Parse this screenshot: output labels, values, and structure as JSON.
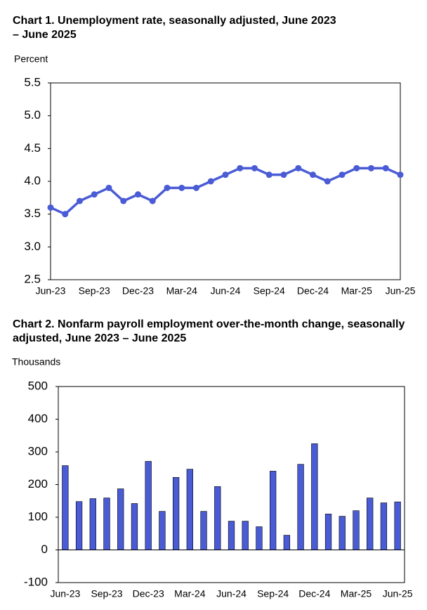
{
  "chart_data": [
    {
      "type": "line",
      "title": "Chart 1. Unemployment rate, seasonally adjusted, June 2023 – June 2025",
      "y_label": "Percent",
      "categories": [
        "Jun-23",
        null,
        null,
        "Sep-23",
        null,
        null,
        "Dec-23",
        null,
        null,
        "Mar-24",
        null,
        null,
        "Jun-24",
        null,
        null,
        "Sep-24",
        null,
        null,
        "Dec-24",
        null,
        null,
        "Mar-25",
        null,
        null,
        "Jun-25"
      ],
      "values": [
        3.6,
        3.5,
        3.7,
        3.8,
        3.9,
        3.7,
        3.8,
        3.7,
        3.9,
        3.9,
        3.9,
        4.0,
        4.1,
        4.2,
        4.2,
        4.1,
        4.1,
        4.2,
        4.1,
        4.0,
        4.1,
        4.2,
        4.2,
        4.2,
        4.1
      ],
      "color": "#4a5bd6",
      "ylim": [
        2.5,
        5.5
      ],
      "yticks": [
        2.5,
        {
          "value": 3,
          "label": "3.0"
        },
        3.5,
        {
          "value": 4,
          "label": "4.0"
        },
        4.5,
        {
          "value": 5,
          "label": "5.0"
        },
        5.5
      ],
      "grid": false
    },
    {
      "type": "bar",
      "title": "Chart 2. Nonfarm payroll employment over-the-month change, seasonally adjusted, June 2023 – June 2025",
      "y_label": "Thousands",
      "categories": [
        "Jun-23",
        null,
        null,
        "Sep-23",
        null,
        null,
        "Dec-23",
        null,
        null,
        "Mar-24",
        null,
        null,
        "Jun-24",
        null,
        null,
        "Sep-24",
        null,
        null,
        "Dec-24",
        null,
        null,
        "Mar-25",
        null,
        null,
        "Jun-25"
      ],
      "values": [
        258,
        148,
        157,
        159,
        187,
        142,
        271,
        118,
        222,
        247,
        118,
        194,
        88,
        88,
        71,
        241,
        45,
        262,
        325,
        110,
        103,
        120,
        159,
        144,
        147
      ],
      "color": "#4a5bd6",
      "ylim": [
        -100,
        500
      ],
      "yticks": [
        -100,
        0,
        100,
        200,
        300,
        400,
        500
      ],
      "grid": false
    }
  ]
}
